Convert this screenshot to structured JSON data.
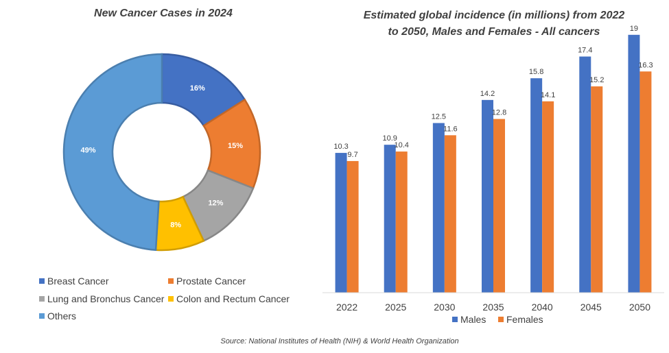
{
  "source": "Source: National Institutes of Health (NIH) & World Health Organization",
  "chart_data": [
    {
      "type": "pie",
      "donut": true,
      "title": "New Cancer Cases in 2024",
      "legend_position": "bottom",
      "slices": [
        {
          "name": "Breast Cancer",
          "value": 16,
          "label": "16%",
          "color": "#4472C4"
        },
        {
          "name": "Prostate Cancer",
          "value": 15,
          "label": "15%",
          "color": "#ED7D31"
        },
        {
          "name": "Lung and Bronchus Cancer",
          "value": 12,
          "label": "12%",
          "color": "#A5A5A5"
        },
        {
          "name": "Colon and Rectum Cancer",
          "value": 8,
          "label": "8%",
          "color": "#FFC000"
        },
        {
          "name": "Others",
          "value": 49,
          "label": "49%",
          "color": "#5B9BD5"
        }
      ]
    },
    {
      "type": "bar",
      "title_lines": [
        "Estimated global incidence (in millions) from 2022",
        "to 2050, Males and Females - All cancers"
      ],
      "categories": [
        "2022",
        "2025",
        "2030",
        "2035",
        "2040",
        "2045",
        "2050"
      ],
      "series": [
        {
          "name": "Males",
          "color": "#4472C4",
          "values": [
            10.3,
            10.9,
            12.5,
            14.2,
            15.8,
            17.4,
            19
          ],
          "labels": [
            "10.3",
            "10.9",
            "12.5",
            "14.2",
            "15.8",
            "17.4",
            "19"
          ]
        },
        {
          "name": "Females",
          "color": "#ED7D31",
          "values": [
            9.7,
            10.4,
            11.6,
            12.8,
            14.1,
            15.2,
            16.3
          ],
          "labels": [
            "9.7",
            "10.4",
            "11.6",
            "12.8",
            "14.1",
            "15.2",
            "16.3"
          ]
        }
      ],
      "ylim": [
        0,
        20
      ],
      "grid": false,
      "legend_position": "bottom"
    }
  ]
}
